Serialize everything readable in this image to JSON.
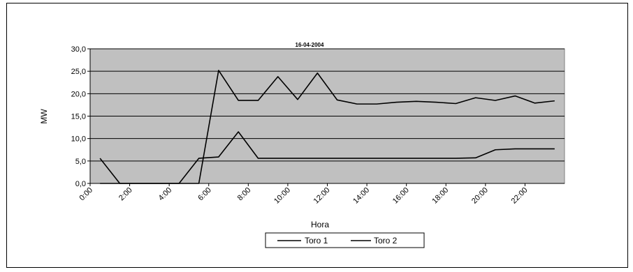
{
  "chart_data": {
    "type": "line",
    "title": "16-04-2004",
    "xlabel": "Hora",
    "ylabel": "MW",
    "ylim": [
      0,
      30
    ],
    "grid": true,
    "legend_position": "bottom",
    "x": [
      0.5,
      1.5,
      2.5,
      3.5,
      4.5,
      5.5,
      6.5,
      7.5,
      8.5,
      9.5,
      10.5,
      11.5,
      12.5,
      13.5,
      14.5,
      15.5,
      16.5,
      17.5,
      18.5,
      19.5,
      20.5,
      21.5,
      22.5,
      23.5
    ],
    "x_tick_labels": [
      "0:00",
      "2:00",
      "4:00",
      "6:00",
      "8:00",
      "10:00",
      "12:00",
      "14:00",
      "16:00",
      "18:00",
      "20:00",
      "22:00"
    ],
    "x_tick_values": [
      0,
      2,
      4,
      6,
      8,
      10,
      12,
      14,
      16,
      18,
      20,
      22
    ],
    "y_tick_labels": [
      "0,0",
      "5,0",
      "10,0",
      "15,0",
      "20,0",
      "25,0",
      "30,0"
    ],
    "y_tick_values": [
      0,
      5,
      10,
      15,
      20,
      25,
      30
    ],
    "series": [
      {
        "name": "Toro 1",
        "color": "#000000",
        "values": [
          5.6,
          0,
          0,
          0,
          0,
          5.6,
          5.9,
          11.5,
          5.6,
          5.6,
          5.6,
          5.6,
          5.6,
          5.6,
          5.6,
          5.6,
          5.6,
          5.6,
          5.6,
          5.7,
          7.5,
          7.7,
          7.7,
          7.7
        ]
      },
      {
        "name": "Toro 2",
        "color": "#000000",
        "values": [
          0,
          0,
          0,
          0,
          0,
          0,
          25.2,
          18.5,
          18.5,
          23.8,
          18.7,
          24.6,
          18.6,
          17.7,
          17.7,
          18.1,
          18.3,
          18.1,
          17.8,
          19.1,
          18.5,
          19.5,
          17.9,
          18.4
        ]
      }
    ]
  },
  "colors": {
    "plot_area": "#c0c0c0",
    "gridline": "#000000",
    "series_line": "#000000"
  }
}
